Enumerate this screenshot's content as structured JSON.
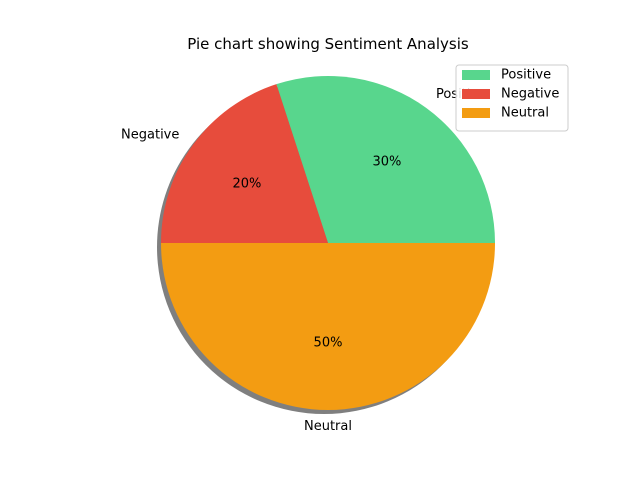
{
  "chart_data": {
    "type": "pie",
    "title": "Pie chart showing Sentiment Analysis",
    "labels": [
      "Positive",
      "Negative",
      "Neutral"
    ],
    "values": [
      30,
      20,
      50
    ],
    "autopct_labels": [
      "30%",
      "20%",
      "50%"
    ],
    "colors": [
      "#58d68d",
      "#e74c3c",
      "#f39c12"
    ],
    "shadow": true,
    "start_angle_deg": 0,
    "direction": "counterclockwise",
    "legend": {
      "placement": "top-right",
      "entries": [
        "Positive",
        "Negative",
        "Neutral"
      ]
    }
  }
}
